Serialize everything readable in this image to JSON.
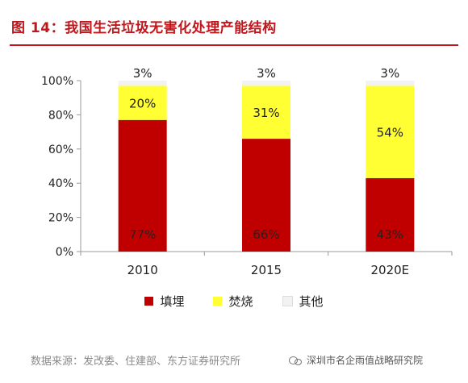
{
  "title": "图 14：我国生活垃圾无害化处理产能结构",
  "source": "数据来源：发改委、住建部、东方证券研究所",
  "watermark": "深圳市名企雨值战略研究院",
  "colors": {
    "title": "#c0171c",
    "landfill": "#c00000",
    "incineration": "#ffff33",
    "other": "#f2f2f2"
  },
  "chart_data": {
    "type": "bar",
    "stacked": true,
    "categories": [
      "2010",
      "2015",
      "2020E"
    ],
    "series": [
      {
        "name": "填埋",
        "color": "#c00000",
        "values": [
          77,
          66,
          43
        ],
        "labels": [
          "77%",
          "66%",
          "43%"
        ]
      },
      {
        "name": "焚烧",
        "color": "#ffff33",
        "values": [
          20,
          31,
          54
        ],
        "labels": [
          "20%",
          "31%",
          "54%"
        ]
      },
      {
        "name": "其他",
        "color": "#f2f2f2",
        "values": [
          3,
          3,
          3
        ],
        "labels": [
          "3%",
          "3%",
          "3%"
        ]
      }
    ],
    "ylim": [
      0,
      100
    ],
    "yticks": [
      "0%",
      "20%",
      "40%",
      "60%",
      "80%",
      "100%"
    ],
    "legend_position": "bottom",
    "grid": false
  }
}
